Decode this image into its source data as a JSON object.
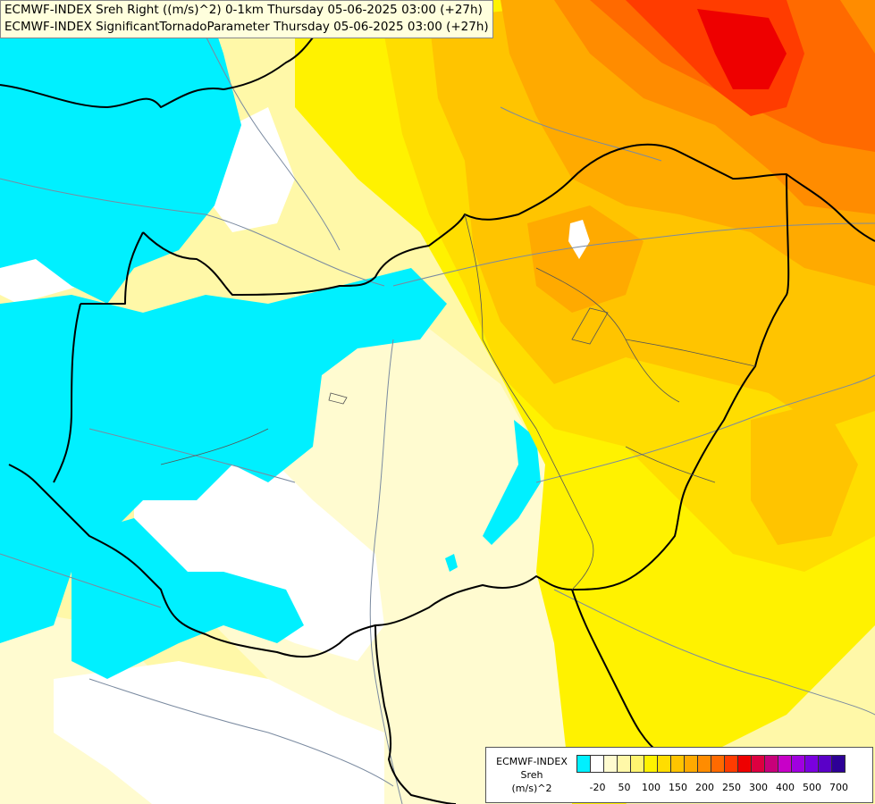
{
  "title": {
    "line1": "ECMWF-INDEX Sreh Right ((m/s)^2) 0-1km Thursday 05-06-2025 03:00 (+27h)",
    "line2": "ECMWF-INDEX SignificantTornadoParameter Thursday 05-06-2025 03:00 (+27h)"
  },
  "legend": {
    "source": "ECMWF-INDEX",
    "param": "Sreh",
    "unit": "(m/s)^2",
    "colors": [
      "#00f0ff",
      "#ffffff",
      "#fffbd0",
      "#fff8a8",
      "#fff470",
      "#fff200",
      "#ffdd00",
      "#ffc400",
      "#ffaa00",
      "#ff8c00",
      "#ff6a00",
      "#ff3c00",
      "#ee0000",
      "#dd0040",
      "#c8007a",
      "#c800c8",
      "#a000e0",
      "#7a00e0",
      "#5a00c8",
      "#2d0096"
    ],
    "ticks": [
      {
        "label": "-20",
        "index": 1
      },
      {
        "label": "50",
        "index": 3
      },
      {
        "label": "100",
        "index": 5
      },
      {
        "label": "150",
        "index": 7
      },
      {
        "label": "200",
        "index": 9
      },
      {
        "label": "250",
        "index": 11
      },
      {
        "label": "300",
        "index": 13
      },
      {
        "label": "400",
        "index": 15
      },
      {
        "label": "500",
        "index": 17
      },
      {
        "label": "700",
        "index": 19
      }
    ]
  }
}
